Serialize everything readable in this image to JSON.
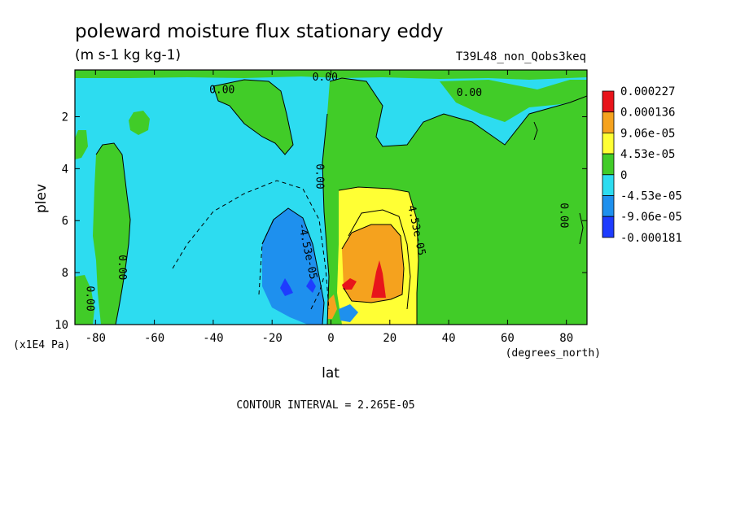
{
  "chart_data": {
    "type": "heatmap",
    "title": "poleward moisture flux stationary eddy",
    "subtitle": "(m s-1 kg kg-1)",
    "run_label": "T39L48_non_Qobs3keq",
    "xlabel": "lat",
    "x_unit_label": "(degrees_north)",
    "ylabel": "plev",
    "y_unit_label": "(x1E4 Pa)",
    "xlim": [
      -87,
      87
    ],
    "ylim": [
      10,
      0.2
    ],
    "x_ticks": [
      "-80",
      "-60",
      "-40",
      "-20",
      "0",
      "20",
      "40",
      "60",
      "80"
    ],
    "x_tick_values": [
      -80,
      -60,
      -40,
      -20,
      0,
      20,
      40,
      60,
      80
    ],
    "y_ticks": [
      "2",
      "4",
      "6",
      "8",
      "10"
    ],
    "y_tick_values": [
      2,
      4,
      6,
      8,
      10
    ],
    "colorbar": {
      "labels": [
        "0.000227",
        "0.000136",
        "9.06e-05",
        "4.53e-05",
        "0",
        "-4.53e-05",
        "-9.06e-05",
        "-0.000181"
      ],
      "colors": [
        "#e8141b",
        "#f5a21e",
        "#ffff34",
        "#41cc28",
        "#2ddcf0",
        "#1e90ee",
        "#1e3cff"
      ]
    },
    "contour_labels": [
      {
        "text": "0.00",
        "lat": -37,
        "plev": 1.1
      },
      {
        "text": "0.00",
        "lat": -2,
        "plev": 0.6
      },
      {
        "text": "0.00",
        "lat": 47,
        "plev": 1.2
      },
      {
        "text": "0.00",
        "lat": -5,
        "plev": 4.3
      },
      {
        "text": "0.00",
        "lat": 78,
        "plev": 5.8
      },
      {
        "text": "0.00",
        "lat": -72,
        "plev": 7.8
      },
      {
        "text": "0.00",
        "lat": -83,
        "plev": 9.0
      },
      {
        "text": "4.53e-05",
        "lat": 28,
        "plev": 6.4
      },
      {
        "text": "-4.53e-05",
        "lat": -9,
        "plev": 7.2
      }
    ],
    "contour_interval_text": "CONTOUR INTERVAL = 2.265E-05"
  }
}
